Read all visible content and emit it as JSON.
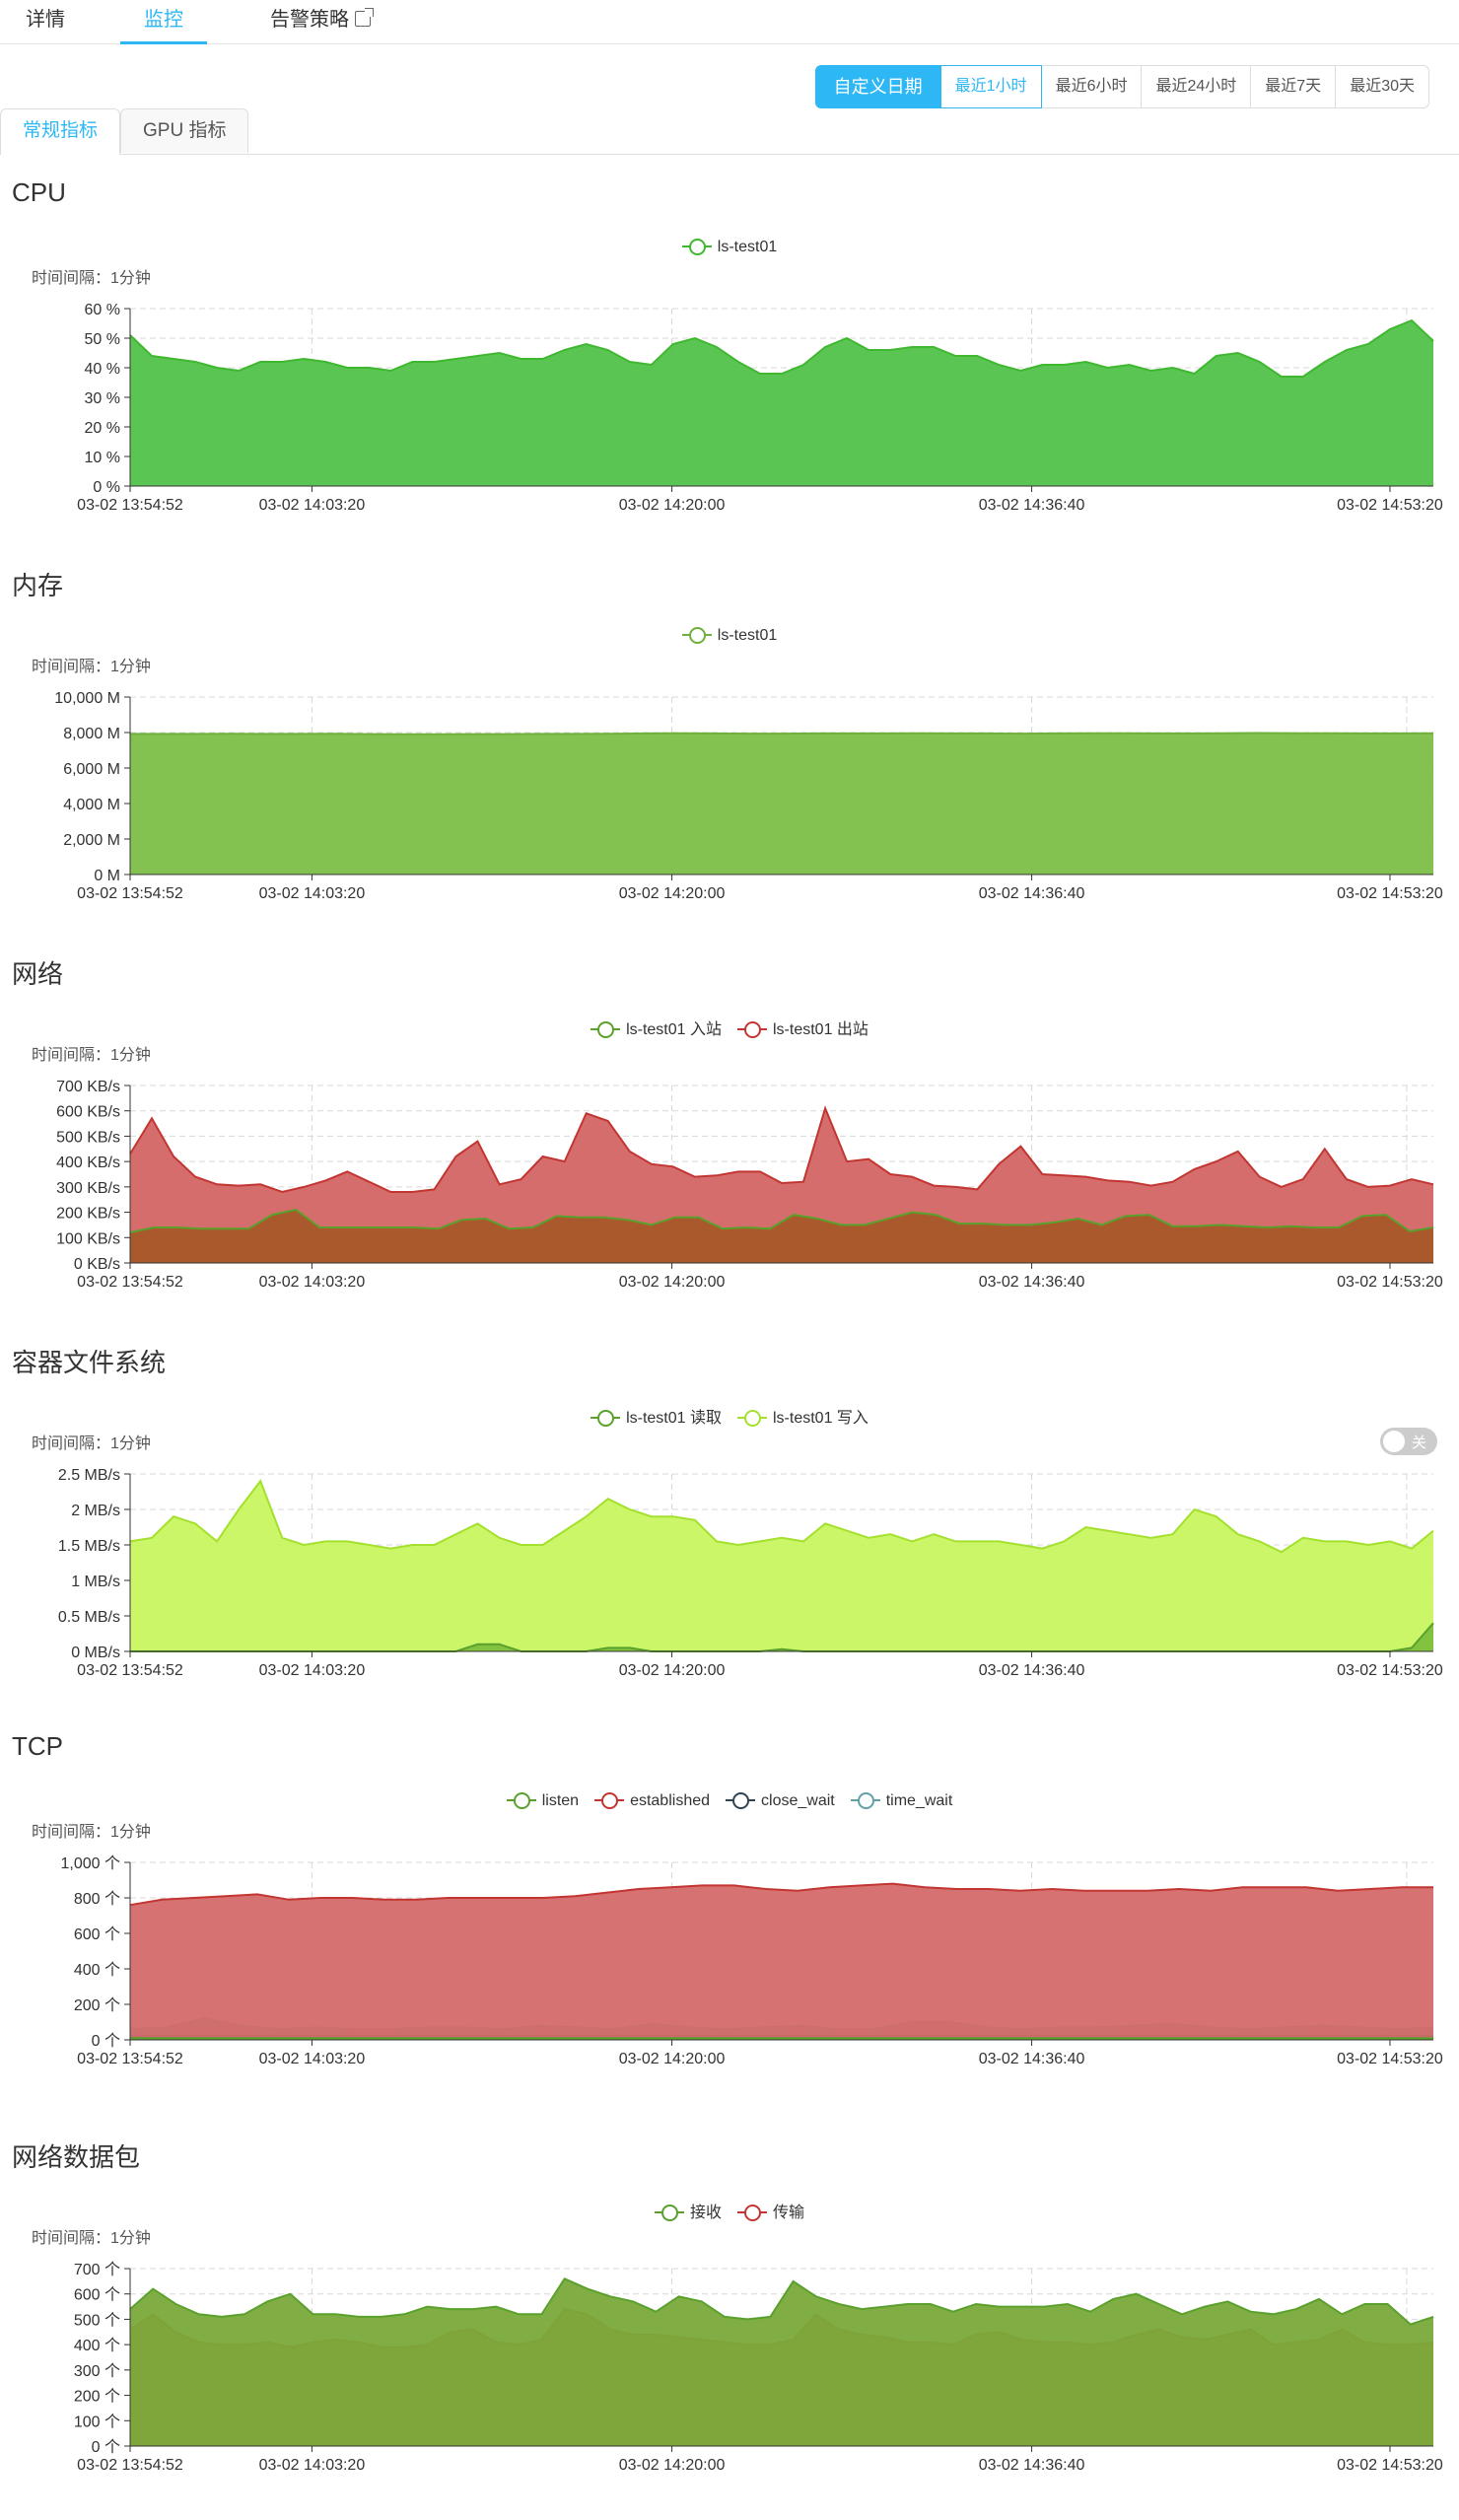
{
  "tabs": [
    {
      "label": "详情",
      "active": false
    },
    {
      "label": "监控",
      "active": true
    },
    {
      "label": "告警策略",
      "active": false,
      "external": true
    }
  ],
  "time_range": {
    "custom_label": "自定义日期",
    "options": [
      "最近1小时",
      "最近6小时",
      "最近24小时",
      "最近7天",
      "最近30天"
    ],
    "selected": "最近1小时"
  },
  "sub_tabs": [
    {
      "label": "常规指标",
      "active": true
    },
    {
      "label": "GPU 指标",
      "active": false
    }
  ],
  "toggle_label": "关",
  "colors": {
    "accent": "#2db7f5",
    "green": "#3fb830",
    "green2": "#7cbf3c",
    "red": "#c23531",
    "lime": "#b6f03a",
    "navy": "#2f4554",
    "teal": "#61a0a8"
  },
  "chart_data": [
    {
      "id": "cpu",
      "title": "CPU",
      "type": "area",
      "interval": "时间间隔：1分钟",
      "x_ticks": [
        "03-02 13:54:52",
        "03-02 14:03:20",
        "03-02 14:20:00",
        "03-02 14:36:40",
        "03-02 14:53:20"
      ],
      "y_ticks": [
        "0 %",
        "10 %",
        "20 %",
        "30 %",
        "40 %",
        "50 %",
        "60 %"
      ],
      "ylim": [
        0,
        60
      ],
      "series": [
        {
          "name": "ls-test01",
          "color": "#3fb830",
          "fill": "#52c24b",
          "values": [
            51,
            44,
            43,
            42,
            40,
            39,
            42,
            42,
            43,
            42,
            40,
            40,
            39,
            42,
            42,
            43,
            44,
            45,
            43,
            43,
            46,
            48,
            46,
            42,
            41,
            48,
            50,
            47,
            42,
            38,
            38,
            41,
            47,
            50,
            46,
            46,
            47,
            47,
            44,
            44,
            41,
            39,
            41,
            41,
            42,
            40,
            41,
            39,
            40,
            38,
            44,
            45,
            42,
            37,
            37,
            42,
            46,
            48,
            53,
            56,
            49
          ]
        }
      ]
    },
    {
      "id": "memory",
      "title": "内存",
      "type": "area",
      "interval": "时间间隔：1分钟",
      "x_ticks": [
        "03-02 13:54:52",
        "03-02 14:03:20",
        "03-02 14:20:00",
        "03-02 14:36:40",
        "03-02 14:53:20"
      ],
      "y_ticks": [
        "0 M",
        "2,000 M",
        "4,000 M",
        "6,000 M",
        "8,000 M",
        "10,000 M"
      ],
      "ylim": [
        0,
        10000
      ],
      "series": [
        {
          "name": "ls-test01",
          "color": "#6fb13a",
          "fill": "#7cbf48",
          "values": [
            7920,
            7920,
            7920,
            7930,
            7920,
            7920,
            7930,
            7910,
            7900,
            7900,
            7910,
            7910,
            7920,
            7920,
            7930,
            7950,
            7960,
            7950,
            7940,
            7940,
            7950,
            7950,
            7950,
            7960,
            7950,
            7950,
            7940,
            7950,
            7960,
            7960,
            7950,
            7950,
            7960,
            7970,
            7960,
            7960,
            7950,
            7950,
            7960
          ]
        }
      ]
    },
    {
      "id": "network",
      "title": "网络",
      "type": "area",
      "interval": "时间间隔：1分钟",
      "x_ticks": [
        "03-02 13:54:52",
        "03-02 14:03:20",
        "03-02 14:20:00",
        "03-02 14:36:40",
        "03-02 14:53:20"
      ],
      "y_ticks": [
        "0 KB/s",
        "100 KB/s",
        "200 KB/s",
        "300 KB/s",
        "400 KB/s",
        "500 KB/s",
        "600 KB/s",
        "700 KB/s"
      ],
      "ylim": [
        0,
        700
      ],
      "series": [
        {
          "name": "ls-test01 入站",
          "color": "#5aa02c",
          "fill": "#a8582a",
          "values": [
            120,
            140,
            140,
            135,
            135,
            135,
            190,
            210,
            140,
            140,
            140,
            140,
            140,
            135,
            170,
            175,
            135,
            140,
            185,
            180,
            180,
            170,
            150,
            180,
            180,
            135,
            140,
            135,
            190,
            175,
            150,
            150,
            175,
            200,
            190,
            155,
            155,
            150,
            150,
            160,
            175,
            150,
            185,
            190,
            145,
            145,
            150,
            145,
            140,
            145,
            140,
            140,
            185,
            190,
            125,
            140
          ]
        },
        {
          "name": "ls-test01 出站",
          "color": "#c23531",
          "fill": "#d46565",
          "values": [
            430,
            570,
            420,
            340,
            310,
            305,
            310,
            280,
            300,
            325,
            360,
            320,
            280,
            280,
            290,
            420,
            480,
            310,
            330,
            420,
            400,
            590,
            560,
            440,
            390,
            380,
            340,
            345,
            360,
            360,
            315,
            320,
            610,
            400,
            410,
            350,
            340,
            305,
            300,
            290,
            390,
            460,
            350,
            345,
            340,
            325,
            320,
            305,
            320,
            370,
            400,
            440,
            340,
            300,
            330,
            450,
            330,
            300,
            305,
            330,
            310
          ]
        }
      ]
    },
    {
      "id": "fs",
      "title": "容器文件系统",
      "type": "area",
      "interval": "时间间隔：1分钟",
      "x_ticks": [
        "03-02 13:54:52",
        "03-02 14:03:20",
        "03-02 14:20:00",
        "03-02 14:36:40",
        "03-02 14:53:20"
      ],
      "y_ticks": [
        "0 MB/s",
        "0.5 MB/s",
        "1 MB/s",
        "1.5 MB/s",
        "2 MB/s",
        "2.5 MB/s"
      ],
      "ylim": [
        0,
        2.5
      ],
      "series": [
        {
          "name": "ls-test01 读取",
          "color": "#5aa02c",
          "fill": "#7cbf3c",
          "values": [
            0,
            0,
            0,
            0,
            0,
            0,
            0,
            0,
            0,
            0,
            0,
            0,
            0,
            0,
            0,
            0,
            0.1,
            0.1,
            0,
            0,
            0,
            0,
            0.05,
            0.05,
            0,
            0,
            0,
            0,
            0,
            0,
            0.03,
            0,
            0,
            0,
            0,
            0,
            0,
            0,
            0,
            0,
            0,
            0,
            0,
            0,
            0,
            0,
            0,
            0,
            0,
            0,
            0,
            0,
            0,
            0,
            0,
            0,
            0,
            0,
            0,
            0.05,
            0.4
          ]
        },
        {
          "name": "ls-test01 写入",
          "color": "#a4e02e",
          "fill": "#c8f560",
          "values": [
            1.55,
            1.6,
            1.9,
            1.8,
            1.55,
            2.0,
            2.4,
            1.6,
            1.5,
            1.55,
            1.55,
            1.5,
            1.45,
            1.5,
            1.5,
            1.65,
            1.8,
            1.6,
            1.5,
            1.5,
            1.7,
            1.9,
            2.15,
            2.0,
            1.9,
            1.9,
            1.85,
            1.55,
            1.5,
            1.55,
            1.6,
            1.55,
            1.8,
            1.7,
            1.6,
            1.65,
            1.55,
            1.65,
            1.55,
            1.55,
            1.55,
            1.5,
            1.45,
            1.55,
            1.75,
            1.7,
            1.65,
            1.6,
            1.65,
            2.0,
            1.9,
            1.65,
            1.55,
            1.4,
            1.6,
            1.55,
            1.55,
            1.5,
            1.55,
            1.45,
            1.7
          ]
        }
      ]
    },
    {
      "id": "tcp",
      "title": "TCP",
      "type": "area",
      "interval": "时间间隔：1分钟",
      "x_ticks": [
        "03-02 13:54:52",
        "03-02 14:03:20",
        "03-02 14:20:00",
        "03-02 14:36:40",
        "03-02 14:53:20"
      ],
      "y_ticks": [
        "0 个",
        "200 个",
        "400 个",
        "600 个",
        "800 个",
        "1,000 个"
      ],
      "ylim": [
        0,
        1000
      ],
      "series": [
        {
          "name": "listen",
          "color": "#5aa02c",
          "fill": "#5aa02c",
          "values": [
            10,
            10,
            10,
            10,
            10,
            10,
            10,
            10,
            10,
            10,
            10,
            10,
            10,
            10,
            10,
            10,
            10,
            10,
            10,
            10,
            10,
            10,
            10,
            10,
            10,
            10,
            10,
            10,
            10,
            10
          ]
        },
        {
          "name": "established",
          "color": "#c23531",
          "fill": "#d46a6a",
          "values": [
            760,
            790,
            800,
            810,
            820,
            790,
            800,
            800,
            790,
            790,
            800,
            800,
            800,
            800,
            810,
            830,
            850,
            860,
            870,
            870,
            850,
            840,
            860,
            870,
            880,
            860,
            850,
            850,
            840,
            850,
            840,
            840,
            840,
            850,
            840,
            860,
            860,
            860,
            840,
            850,
            860,
            860
          ]
        },
        {
          "name": "close_wait",
          "color": "#2f4554",
          "fill": "#2f4554",
          "values": [
            20,
            20,
            20,
            20,
            20,
            20,
            20,
            20,
            20,
            20,
            20,
            20,
            20,
            20,
            20,
            20,
            20,
            20,
            20,
            20,
            20,
            20,
            20,
            20,
            20,
            20,
            20,
            20,
            20,
            20
          ]
        },
        {
          "name": "time_wait",
          "color": "#61a0a8",
          "fill": "#7aa3a8",
          "values": [
            60,
            70,
            120,
            80,
            60,
            70,
            60,
            60,
            70,
            70,
            60,
            80,
            70,
            60,
            90,
            70,
            60,
            70,
            80,
            60,
            60,
            100,
            100,
            70,
            60,
            70,
            70,
            80,
            90,
            70,
            60,
            70,
            80,
            70,
            60,
            70
          ]
        }
      ]
    },
    {
      "id": "packets",
      "title": "网络数据包",
      "type": "area",
      "interval": "时间间隔：1分钟",
      "x_ticks": [
        "03-02 13:54:52",
        "03-02 14:03:20",
        "03-02 14:20:00",
        "03-02 14:36:40",
        "03-02 14:53:20"
      ],
      "y_ticks": [
        "0 个",
        "100 个",
        "200 个",
        "300 个",
        "400 个",
        "500 个",
        "600 个",
        "700 个"
      ],
      "ylim": [
        0,
        700
      ],
      "series": [
        {
          "name": "接收",
          "color": "#5aa02c",
          "fill": "#7aaa3a",
          "values": [
            540,
            620,
            560,
            520,
            510,
            520,
            570,
            600,
            520,
            520,
            510,
            510,
            520,
            550,
            540,
            540,
            550,
            520,
            520,
            660,
            620,
            590,
            570,
            530,
            590,
            570,
            510,
            500,
            510,
            650,
            590,
            560,
            540,
            550,
            560,
            560,
            530,
            560,
            550,
            550,
            550,
            560,
            530,
            580,
            600,
            560,
            520,
            550,
            570,
            530,
            520,
            540,
            580,
            520,
            560,
            560,
            480,
            510
          ]
        },
        {
          "name": "传输",
          "color": "#c23531",
          "fill": "#b35a38",
          "values": [
            460,
            520,
            450,
            410,
            400,
            400,
            410,
            390,
            410,
            420,
            410,
            390,
            390,
            400,
            450,
            460,
            410,
            400,
            420,
            540,
            520,
            460,
            440,
            440,
            430,
            420,
            410,
            400,
            400,
            420,
            520,
            460,
            440,
            430,
            410,
            410,
            400,
            440,
            450,
            420,
            410,
            410,
            400,
            410,
            440,
            460,
            430,
            420,
            440,
            460,
            400,
            410,
            420,
            460,
            410,
            400,
            400,
            410
          ]
        }
      ]
    }
  ]
}
